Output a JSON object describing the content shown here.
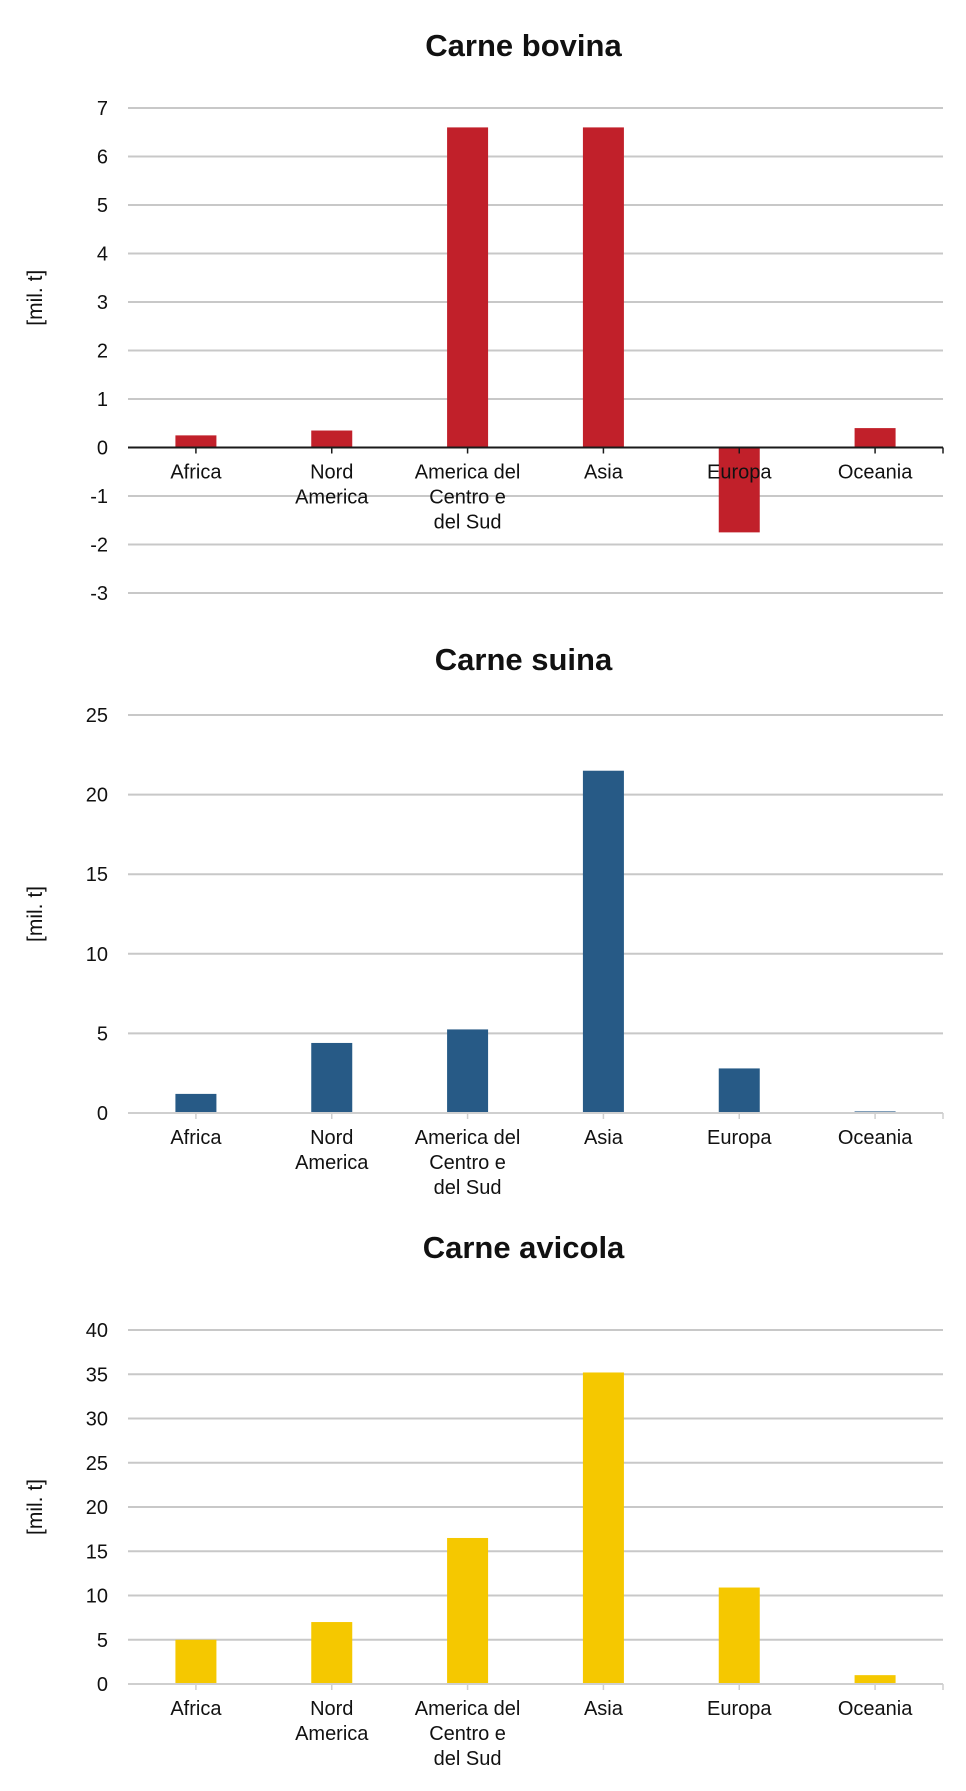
{
  "chart_data": [
    {
      "type": "bar",
      "title": "Carne bovina",
      "xlabel": "",
      "ylabel": "[mil. t]",
      "categories": [
        "Africa",
        "Nord America",
        "America del Centro e del Sud",
        "Asia",
        "Europa",
        "Oceania"
      ],
      "category_lines": [
        [
          "Africa"
        ],
        [
          "Nord",
          "America"
        ],
        [
          "America del",
          "Centro e",
          "del Sud"
        ],
        [
          "Asia"
        ],
        [
          "Europa"
        ],
        [
          "Oceania"
        ]
      ],
      "values": [
        0.25,
        0.35,
        6.6,
        6.6,
        -1.75,
        0.4
      ],
      "ylim": [
        -3,
        7
      ],
      "yticks": [
        7,
        6,
        5,
        4,
        3,
        2,
        1,
        0,
        -1,
        -2,
        -3
      ],
      "ytick_labels": [
        "7",
        "6",
        "5",
        "4",
        "3",
        "2",
        "1",
        "0",
        "-1",
        "-2",
        "-3"
      ],
      "color": "#c1202a",
      "grid": true,
      "legend": "none"
    },
    {
      "type": "bar",
      "title": "Carne suina",
      "xlabel": "",
      "ylabel": "[mil. t]",
      "categories": [
        "Africa",
        "Nord America",
        "America del Centro e del Sud",
        "Asia",
        "Europa",
        "Oceania"
      ],
      "category_lines": [
        [
          "Africa"
        ],
        [
          "Nord",
          "America"
        ],
        [
          "America del",
          "Centro e",
          "del Sud"
        ],
        [
          "Asia"
        ],
        [
          "Europa"
        ],
        [
          "Oceania"
        ]
      ],
      "values": [
        1.2,
        4.4,
        5.25,
        21.5,
        2.8,
        0.1
      ],
      "ylim": [
        0,
        25
      ],
      "yticks": [
        25,
        20,
        15,
        10,
        5,
        0
      ],
      "ytick_labels": [
        "25",
        "20",
        "15",
        "10",
        "5",
        "0"
      ],
      "color": "#275a86",
      "grid": true,
      "legend": "none"
    },
    {
      "type": "bar",
      "title": "Carne avicola",
      "xlabel": "",
      "ylabel": "[mil. t]",
      "categories": [
        "Africa",
        "Nord America",
        "America del Centro e del Sud",
        "Asia",
        "Europa",
        "Oceania"
      ],
      "category_lines": [
        [
          "Africa"
        ],
        [
          "Nord",
          "America"
        ],
        [
          "America del",
          "Centro e",
          "del Sud"
        ],
        [
          "Asia"
        ],
        [
          "Europa"
        ],
        [
          "Oceania"
        ]
      ],
      "values": [
        5.0,
        7.0,
        16.5,
        35.2,
        10.9,
        1.0
      ],
      "ylim": [
        0,
        40
      ],
      "yticks": [
        40,
        35,
        30,
        25,
        20,
        15,
        10,
        5,
        0
      ],
      "ytick_labels": [
        "40",
        "35",
        "30",
        "25",
        "20",
        "15",
        "10",
        "5",
        "0"
      ],
      "color": "#f5c800",
      "grid": true,
      "legend": "none"
    }
  ]
}
